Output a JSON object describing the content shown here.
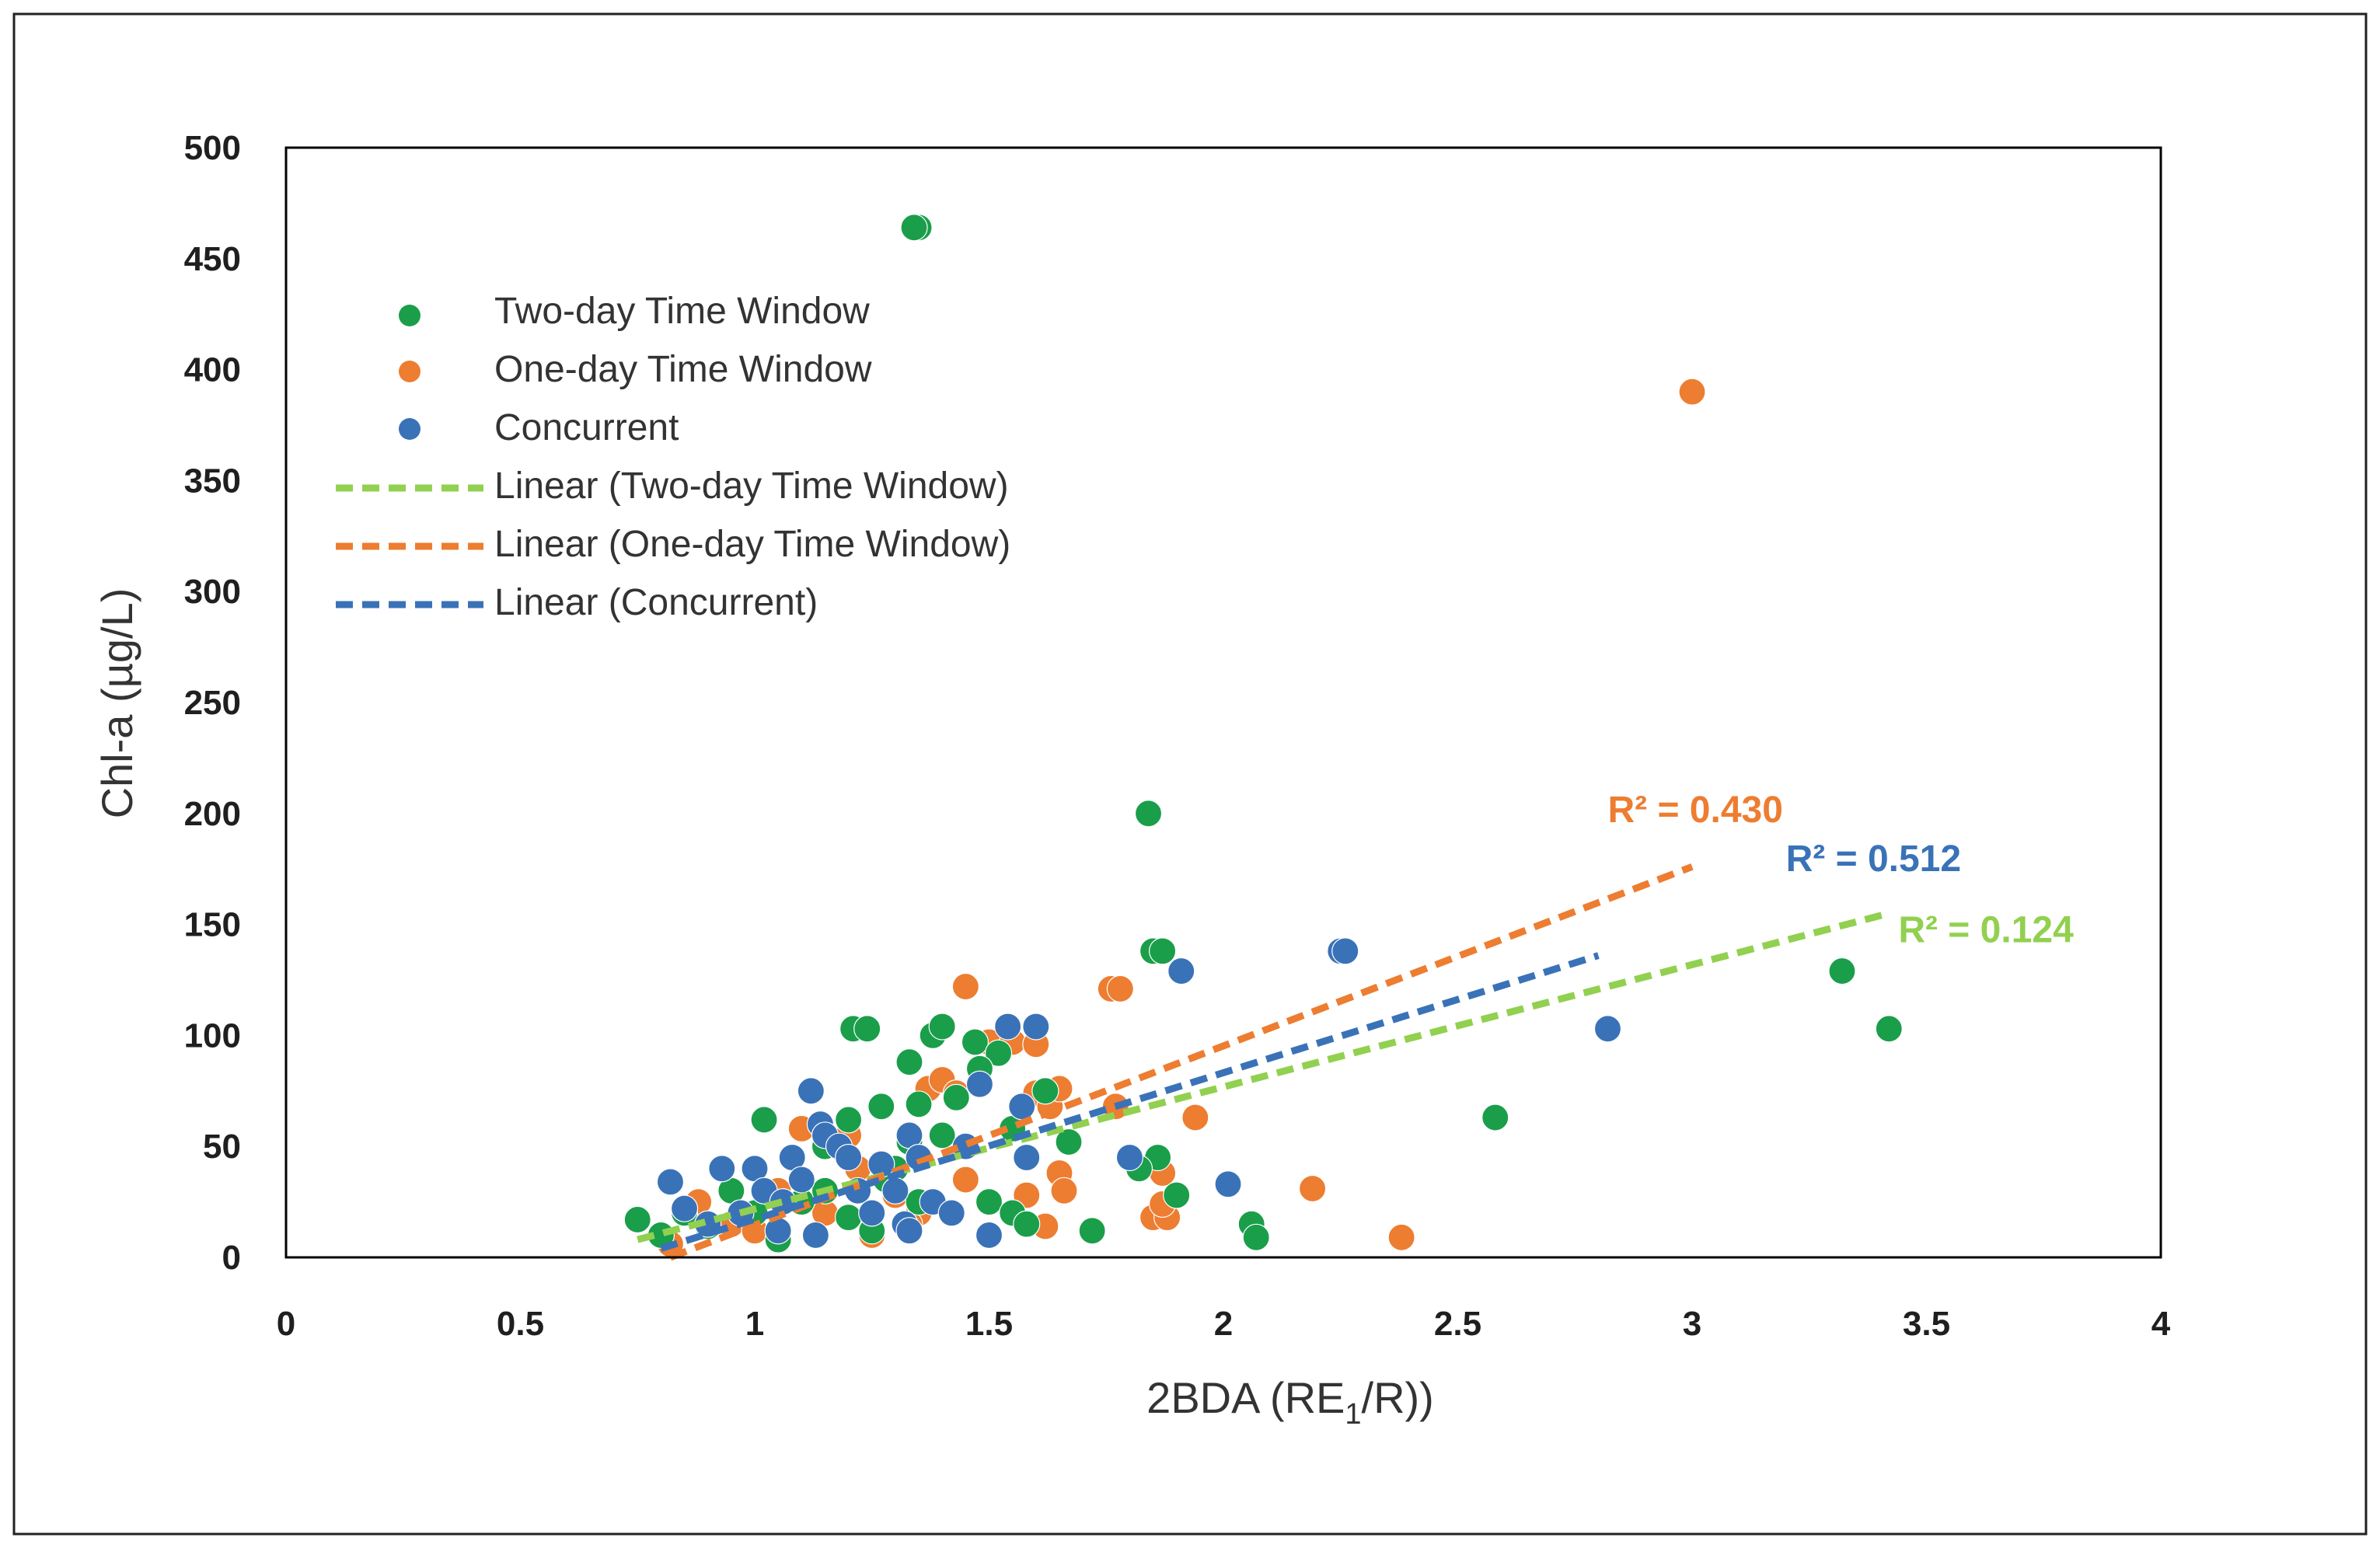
{
  "chart_data": {
    "type": "scatter",
    "title": "",
    "xlabel_parts": [
      "2BDA (RE",
      "1",
      "/R))"
    ],
    "ylabel": "Chl-a (µg/L)",
    "xlim": [
      0,
      4
    ],
    "ylim": [
      0,
      500
    ],
    "x_ticks": [
      "0",
      "0.5",
      "1",
      "1.5",
      "2",
      "2.5",
      "3",
      "3.5",
      "4"
    ],
    "y_ticks": [
      "0",
      "50",
      "100",
      "150",
      "200",
      "250",
      "300",
      "350",
      "400",
      "450",
      "500"
    ],
    "grid": false,
    "legend_position": "top-left",
    "series": [
      {
        "name": "Two-day Time Window",
        "color": "#1a9e4a",
        "points": [
          [
            0.75,
            17
          ],
          [
            0.8,
            10
          ],
          [
            0.9,
            14
          ],
          [
            1.0,
            20
          ],
          [
            1.05,
            8
          ],
          [
            1.1,
            25
          ],
          [
            1.15,
            30
          ],
          [
            1.2,
            18
          ],
          [
            1.25,
            12
          ],
          [
            1.3,
            40
          ],
          [
            1.35,
            25
          ],
          [
            1.02,
            62
          ],
          [
            1.2,
            62
          ],
          [
            1.27,
            68
          ],
          [
            1.33,
            52
          ],
          [
            1.35,
            69
          ],
          [
            1.4,
            55
          ],
          [
            1.43,
            72
          ],
          [
            1.33,
            88
          ],
          [
            1.38,
            100
          ],
          [
            1.4,
            104
          ],
          [
            1.47,
            97
          ],
          [
            1.21,
            103
          ],
          [
            1.24,
            103
          ],
          [
            1.35,
            464
          ],
          [
            1.34,
            464
          ],
          [
            1.55,
            58
          ],
          [
            1.5,
            25
          ],
          [
            1.55,
            20
          ],
          [
            1.58,
            15
          ],
          [
            1.62,
            75
          ],
          [
            1.67,
            52
          ],
          [
            1.72,
            12
          ],
          [
            1.52,
            92
          ],
          [
            1.48,
            85
          ],
          [
            1.84,
            200
          ],
          [
            1.85,
            138
          ],
          [
            1.87,
            138
          ],
          [
            1.86,
            45
          ],
          [
            1.82,
            40
          ],
          [
            1.9,
            28
          ],
          [
            2.06,
            15
          ],
          [
            2.07,
            9
          ],
          [
            2.58,
            63
          ],
          [
            3.32,
            129
          ],
          [
            3.42,
            103
          ],
          [
            0.85,
            20
          ],
          [
            0.95,
            30
          ],
          [
            1.15,
            50
          ],
          [
            1.28,
            35
          ]
        ]
      },
      {
        "name": "One-day Time Window",
        "color": "#ed7d31",
        "points": [
          [
            0.82,
            6
          ],
          [
            0.88,
            25
          ],
          [
            0.95,
            15
          ],
          [
            1.05,
            30
          ],
          [
            1.1,
            58
          ],
          [
            1.15,
            20
          ],
          [
            1.2,
            55
          ],
          [
            1.25,
            10
          ],
          [
            1.3,
            28
          ],
          [
            1.35,
            20
          ],
          [
            1.37,
            76
          ],
          [
            1.4,
            80
          ],
          [
            1.43,
            74
          ],
          [
            1.45,
            35
          ],
          [
            1.45,
            122
          ],
          [
            1.5,
            97
          ],
          [
            1.55,
            97
          ],
          [
            1.6,
            96
          ],
          [
            1.6,
            74
          ],
          [
            1.63,
            68
          ],
          [
            1.65,
            76
          ],
          [
            1.62,
            14
          ],
          [
            1.58,
            28
          ],
          [
            1.65,
            38
          ],
          [
            1.66,
            30
          ],
          [
            1.76,
            121
          ],
          [
            1.78,
            121
          ],
          [
            1.77,
            68
          ],
          [
            1.85,
            18
          ],
          [
            1.87,
            38
          ],
          [
            1.88,
            18
          ],
          [
            1.87,
            24
          ],
          [
            1.94,
            63
          ],
          [
            2.19,
            31
          ],
          [
            2.38,
            9
          ],
          [
            3.0,
            390
          ],
          [
            1.0,
            12
          ],
          [
            1.22,
            40
          ],
          [
            1.33,
            15
          ]
        ]
      },
      {
        "name": "Concurrent",
        "color": "#3a72b8",
        "points": [
          [
            0.82,
            34
          ],
          [
            0.85,
            22
          ],
          [
            0.9,
            15
          ],
          [
            0.93,
            40
          ],
          [
            0.97,
            20
          ],
          [
            1.0,
            40
          ],
          [
            1.02,
            30
          ],
          [
            1.05,
            12
          ],
          [
            1.08,
            45
          ],
          [
            1.1,
            35
          ],
          [
            1.12,
            75
          ],
          [
            1.14,
            60
          ],
          [
            1.15,
            55
          ],
          [
            1.18,
            50
          ],
          [
            1.2,
            45
          ],
          [
            1.22,
            30
          ],
          [
            1.25,
            20
          ],
          [
            1.27,
            42
          ],
          [
            1.3,
            30
          ],
          [
            1.32,
            15
          ],
          [
            1.33,
            55
          ],
          [
            1.35,
            45
          ],
          [
            1.38,
            25
          ],
          [
            1.42,
            20
          ],
          [
            1.45,
            50
          ],
          [
            1.48,
            78
          ],
          [
            1.5,
            10
          ],
          [
            1.54,
            104
          ],
          [
            1.6,
            104
          ],
          [
            1.57,
            68
          ],
          [
            1.58,
            45
          ],
          [
            1.8,
            45
          ],
          [
            1.91,
            129
          ],
          [
            2.01,
            33
          ],
          [
            2.25,
            138
          ],
          [
            2.26,
            138
          ],
          [
            2.82,
            103
          ],
          [
            1.13,
            10
          ],
          [
            1.33,
            12
          ],
          [
            1.06,
            25
          ]
        ]
      }
    ],
    "trendlines": [
      {
        "name": "Linear (Two-day Time Window)",
        "color": "#92d050",
        "x": [
          0.75,
          3.42
        ],
        "y": [
          8,
          155
        ],
        "r2_label": "R² = 0.124",
        "label_x": 3.44,
        "label_y": 142
      },
      {
        "name": "Linear (One-day Time Window)",
        "color": "#ed7d31",
        "x": [
          0.82,
          3.0
        ],
        "y": [
          0,
          176
        ],
        "r2_label": "R² = 0.430",
        "label_x": 2.82,
        "label_y": 196
      },
      {
        "name": "Linear (Concurrent)",
        "color": "#3a72b8",
        "x": [
          0.8,
          2.8
        ],
        "y": [
          4,
          136
        ],
        "r2_label": "R² = 0.512",
        "label_x": 3.2,
        "label_y": 174
      }
    ]
  }
}
